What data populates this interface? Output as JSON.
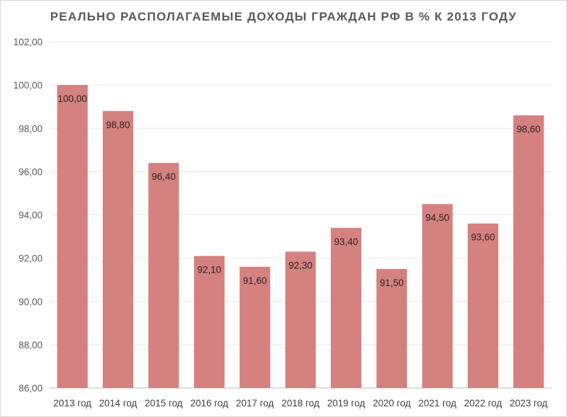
{
  "chart_data": {
    "type": "bar",
    "title": "РЕАЛЬНО РАСПОЛАГАЕМЫЕ ДОХОДЫ ГРАЖДАН РФ В % К 2013 ГОДУ",
    "xlabel": "",
    "ylabel": "",
    "categories": [
      "2013 год",
      "2014 год",
      "2015 год",
      "2016 год",
      "2017 год",
      "2018 год",
      "2019 год",
      "2020 год",
      "2021 год",
      "2022 год",
      "2023 год"
    ],
    "values": [
      100.0,
      98.8,
      96.4,
      92.1,
      91.6,
      92.3,
      93.4,
      91.5,
      94.5,
      93.6,
      98.6
    ],
    "data_labels": [
      "100,00",
      "98,80",
      "96,40",
      "92,10",
      "91,60",
      "92,30",
      "93,40",
      "91,50",
      "94,50",
      "93,60",
      "98,60"
    ],
    "ylim": [
      86,
      102
    ],
    "yticks": [
      86,
      88,
      90,
      92,
      94,
      96,
      98,
      100,
      102
    ],
    "ytick_labels": [
      "86,00",
      "88,00",
      "90,00",
      "92,00",
      "94,00",
      "96,00",
      "98,00",
      "100,00",
      "102,00"
    ],
    "grid": true,
    "legend": "none",
    "bar_color": "#d5817f",
    "grid_color": "#e6e6e6"
  }
}
